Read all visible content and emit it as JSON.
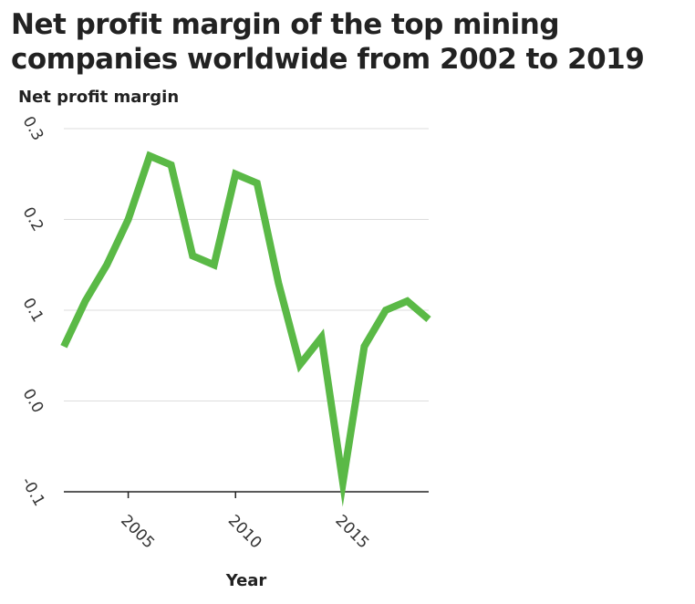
{
  "chart_data": {
    "type": "line",
    "title": "Net profit margin of the top mining companies worldwide from 2002 to 2019",
    "xlabel": "Year",
    "ylabel": "Net profit margin",
    "xlim": [
      2002,
      2019
    ],
    "ylim": [
      -0.1,
      0.3
    ],
    "yticks": [
      "-0.1",
      "0.0",
      "0.1",
      "0.2",
      "0.3"
    ],
    "ytick_values": [
      -0.1,
      0.0,
      0.1,
      0.2,
      0.3
    ],
    "xticks": [
      "2005",
      "2010",
      "2015"
    ],
    "xtick_values": [
      2005,
      2010,
      2015
    ],
    "grid": true,
    "line_color": "#5ab946",
    "series": [
      {
        "name": "Net profit margin",
        "x": [
          2002,
          2003,
          2004,
          2005,
          2006,
          2007,
          2008,
          2009,
          2010,
          2011,
          2012,
          2013,
          2014,
          2015,
          2016,
          2017,
          2018,
          2019
        ],
        "values": [
          0.06,
          0.11,
          0.15,
          0.2,
          0.27,
          0.26,
          0.16,
          0.15,
          0.25,
          0.24,
          0.13,
          0.04,
          0.07,
          -0.09,
          0.06,
          0.1,
          0.11,
          0.09
        ]
      }
    ]
  }
}
